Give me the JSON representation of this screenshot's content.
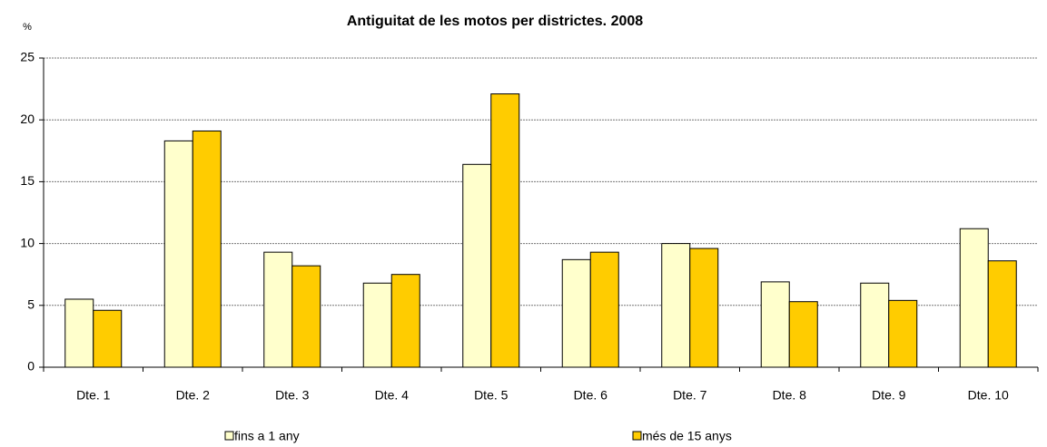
{
  "chart_data": {
    "type": "bar",
    "title": "Antiguitat de les motos per districtes. 2008",
    "y_label": "%",
    "categories": [
      "Dte. 1",
      "Dte. 2",
      "Dte. 3",
      "Dte. 4",
      "Dte. 5",
      "Dte. 6",
      "Dte. 7",
      "Dte. 8",
      "Dte. 9",
      "Dte. 10"
    ],
    "series": [
      {
        "name": "fins a 1 any",
        "color": "#ffffcc",
        "values": [
          5.5,
          18.3,
          9.3,
          6.8,
          16.4,
          8.7,
          10.0,
          6.9,
          6.8,
          11.2
        ]
      },
      {
        "name": "més de 15 anys",
        "color": "#ffcc00",
        "values": [
          4.6,
          19.1,
          8.2,
          7.5,
          22.1,
          9.3,
          9.6,
          5.3,
          5.4,
          8.6
        ]
      }
    ],
    "ylim": [
      0,
      25
    ],
    "yticks": [
      0,
      5,
      10,
      15,
      20,
      25
    ],
    "grid": true,
    "legend": "bottom"
  }
}
